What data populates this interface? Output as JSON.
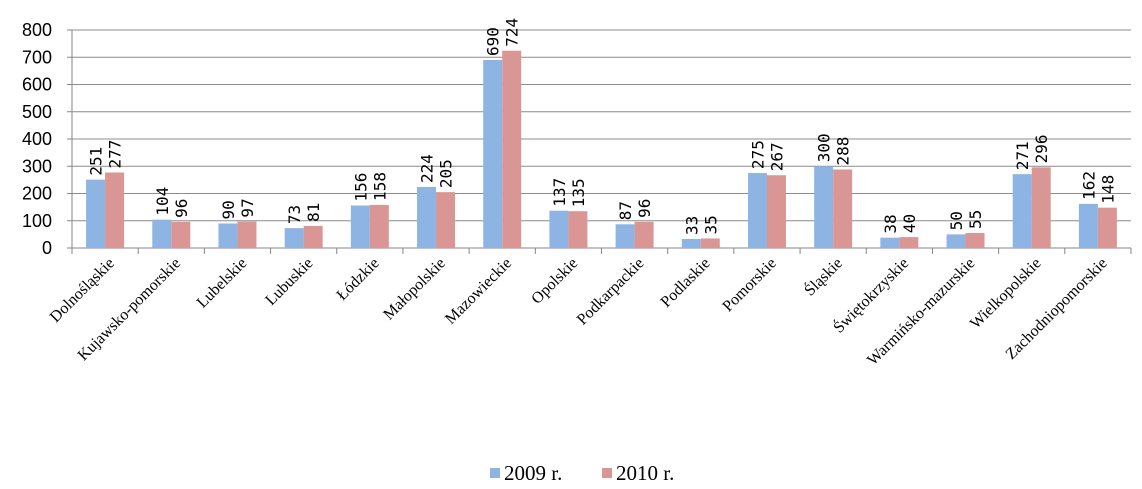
{
  "chart_data": {
    "type": "bar",
    "categories": [
      "Dolnośląskie",
      "Kujawsko-pomorskie",
      "Lubelskie",
      "Lubuskie",
      "Łódzkie",
      "Małopolskie",
      "Mazowieckie",
      "Opolskie",
      "Podkarpackie",
      "Podlaskie",
      "Pomorskie",
      "Śląskie",
      "Świętokrzyskie",
      "Warmińsko-mazurskie",
      "Wielkopolskie",
      "Zachodniopomorskie"
    ],
    "series": [
      {
        "name": "2009 r.",
        "color": "#8EB4E3",
        "values": [
          251,
          104,
          90,
          73,
          156,
          224,
          690,
          137,
          87,
          33,
          275,
          300,
          38,
          50,
          271,
          162
        ]
      },
      {
        "name": "2010 r.",
        "color": "#D99694",
        "values": [
          277,
          96,
          97,
          81,
          158,
          205,
          724,
          135,
          96,
          35,
          267,
          288,
          40,
          55,
          296,
          148
        ]
      }
    ],
    "ylim": [
      0,
      800
    ],
    "yticks": [
      "0",
      "100",
      "200",
      "300",
      "400",
      "500",
      "600",
      "700",
      "800"
    ],
    "grid": true,
    "legend": "bottom",
    "data_labels": true
  }
}
